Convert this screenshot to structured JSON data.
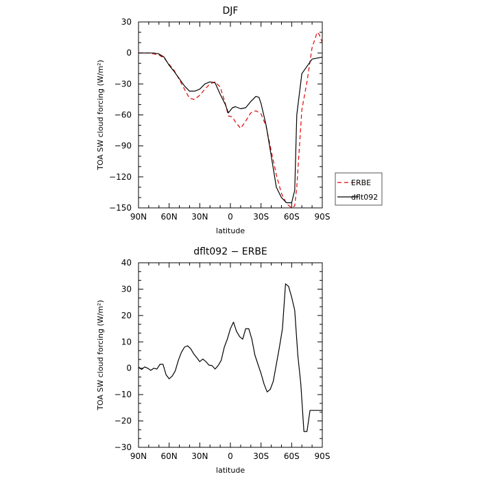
{
  "chart_data": [
    {
      "type": "line",
      "title": "DJF",
      "xlabel": "latitude",
      "ylabel": "TOA SW cloud forcing (W/m²)",
      "xlim": [
        90,
        -90
      ],
      "ylim": [
        -150,
        30
      ],
      "xtick_values": [
        90,
        60,
        30,
        0,
        -30,
        -60,
        -90
      ],
      "xtick_labels": [
        "90N",
        "60N",
        "30N",
        "0",
        "30S",
        "60S",
        "90S"
      ],
      "ytick_values": [
        30,
        0,
        -30,
        -60,
        -90,
        -120,
        -150
      ],
      "ytick_labels": [
        "30",
        "0",
        "−30",
        "−60",
        "−90",
        "−120",
        "−150"
      ],
      "legend_position": "right",
      "series": [
        {
          "name": "ERBE",
          "color": "#e00000",
          "dash": "dashed",
          "x": [
            90,
            85,
            80,
            75,
            70,
            65,
            60,
            55,
            50,
            45,
            40,
            35,
            30,
            25,
            20,
            15,
            10,
            5,
            2,
            -2,
            -5,
            -10,
            -15,
            -20,
            -25,
            -30,
            -35,
            -40,
            -45,
            -50,
            -55,
            -60,
            -63,
            -65,
            -70,
            -75,
            -80,
            -85,
            -87,
            -90
          ],
          "y": [
            0,
            0,
            0,
            -1,
            -2,
            -5,
            -11,
            -17,
            -26,
            -35,
            -44,
            -45,
            -41,
            -35,
            -30,
            -28,
            -33,
            -49,
            -61,
            -62,
            -67,
            -73,
            -66,
            -58,
            -56,
            -59,
            -71,
            -95,
            -118,
            -136,
            -146,
            -150,
            -148,
            -130,
            -55,
            -28,
            5,
            20,
            18,
            10
          ]
        },
        {
          "name": "dflt092",
          "color": "#000000",
          "dash": "solid",
          "x": [
            90,
            85,
            80,
            75,
            70,
            65,
            60,
            55,
            50,
            45,
            40,
            35,
            30,
            25,
            20,
            15,
            10,
            5,
            2,
            -2,
            -5,
            -10,
            -15,
            -20,
            -25,
            -28,
            -30,
            -35,
            -40,
            -45,
            -50,
            -55,
            -60,
            -63,
            -65,
            -70,
            -75,
            -80,
            -85,
            -90
          ],
          "y": [
            0,
            0,
            0,
            0,
            -1,
            -4,
            -12,
            -18,
            -25,
            -32,
            -37,
            -37,
            -35,
            -30,
            -28,
            -29,
            -40,
            -50,
            -58,
            -53,
            -52,
            -54,
            -53,
            -47,
            -42,
            -43,
            -49,
            -70,
            -100,
            -130,
            -140,
            -145,
            -145,
            -133,
            -60,
            -20,
            -13,
            -6,
            -5,
            -4
          ]
        }
      ]
    },
    {
      "type": "line",
      "title": "dflt092 − ERBE",
      "xlabel": "latitude",
      "ylabel": "TOA SW cloud forcing (W/m²)",
      "xlim": [
        90,
        -90
      ],
      "ylim": [
        -30,
        40
      ],
      "xtick_values": [
        90,
        60,
        30,
        0,
        -30,
        -60,
        -90
      ],
      "xtick_labels": [
        "90N",
        "60N",
        "30N",
        "0",
        "30S",
        "60S",
        "90S"
      ],
      "ytick_values": [
        40,
        30,
        20,
        10,
        0,
        -10,
        -20,
        -30
      ],
      "ytick_labels": [
        "40",
        "30",
        "20",
        "10",
        "0",
        "−10",
        "−20",
        "−30"
      ],
      "series": [
        {
          "name": "",
          "color": "#000000",
          "dash": "solid",
          "x": [
            90,
            87,
            84,
            81,
            78,
            75,
            72,
            69,
            66,
            63,
            60,
            57,
            54,
            51,
            48,
            45,
            42,
            39,
            36,
            33,
            30,
            27,
            24,
            21,
            18,
            15,
            12,
            9,
            6,
            3,
            0,
            -3,
            -6,
            -9,
            -12,
            -15,
            -18,
            -21,
            -24,
            -27,
            -30,
            -33,
            -36,
            -39,
            -42,
            -45,
            -48,
            -51,
            -54,
            -57,
            -60,
            -63,
            -66,
            -69,
            -72,
            -75,
            -78,
            -81,
            -84,
            -87,
            -90
          ],
          "y": [
            0.5,
            -0.5,
            0.5,
            0,
            -0.8,
            0,
            -0.3,
            1.5,
            1.5,
            -2.5,
            -4,
            -3,
            -1,
            3,
            6,
            8,
            8.5,
            7.5,
            5.5,
            4,
            2.5,
            3.5,
            2.5,
            1.2,
            1,
            -0.3,
            1,
            3,
            8,
            11,
            15,
            17.5,
            14,
            12,
            11,
            15,
            15,
            11,
            5,
            1.5,
            -2,
            -6,
            -9,
            -8,
            -5,
            1.5,
            8,
            15,
            32,
            31,
            27,
            22,
            5,
            -6,
            -24,
            -24,
            -16,
            -16,
            -16,
            -16,
            -16
          ]
        }
      ]
    }
  ]
}
